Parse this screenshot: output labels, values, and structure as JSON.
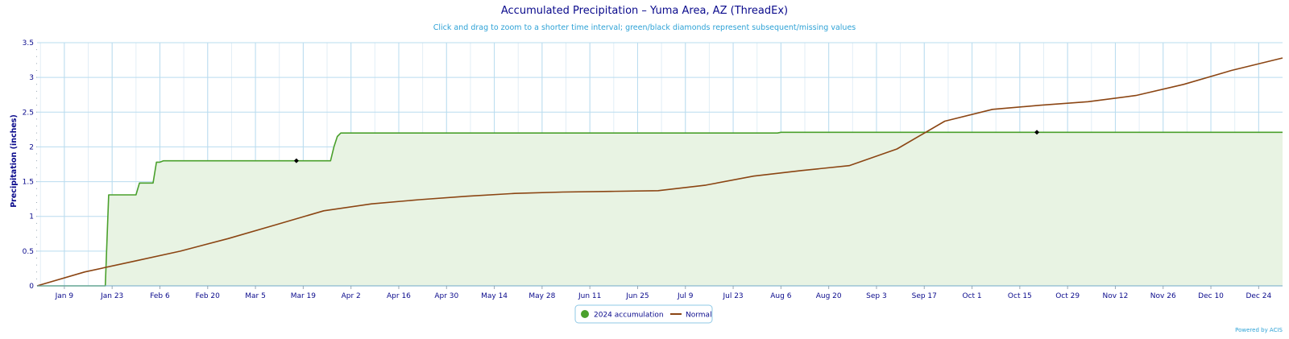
{
  "chart_data": {
    "type": "line",
    "title": "Accumulated Precipitation – Yuma Area, AZ (ThreadEx)",
    "subtitle": "Click and drag to zoom to a shorter time interval; green/black diamonds represent subsequent/missing values",
    "ylabel": "Precipitation (inches)",
    "xlabel": "",
    "ylim": [
      0,
      3.5
    ],
    "yticks": [
      "0",
      "0.5",
      "1",
      "1.5",
      "2",
      "2.5",
      "3",
      "3.5"
    ],
    "xticks": [
      "Jan 9",
      "Jan 23",
      "Feb 6",
      "Feb 20",
      "Mar 5",
      "Mar 19",
      "Apr 2",
      "Apr 16",
      "Apr 30",
      "May 14",
      "May 28",
      "Jun 11",
      "Jun 25",
      "Jul 9",
      "Jul 23",
      "Aug 6",
      "Aug 20",
      "Sep 3",
      "Sep 17",
      "Oct 1",
      "Oct 15",
      "Oct 29",
      "Nov 12",
      "Nov 26",
      "Dec 10",
      "Dec 24"
    ],
    "grid": true,
    "legend_position": "bottom-center",
    "series": [
      {
        "name": "2024 accumulation",
        "color": "#4aa02c",
        "fill": "#e8f3e3",
        "points": [
          [
            "2024-01-01",
            0.0
          ],
          [
            "2024-01-21",
            0.0
          ],
          [
            "2024-01-22",
            1.31
          ],
          [
            "2024-01-30",
            1.31
          ],
          [
            "2024-01-31",
            1.48
          ],
          [
            "2024-02-04",
            1.48
          ],
          [
            "2024-02-05",
            1.78
          ],
          [
            "2024-02-06",
            1.78
          ],
          [
            "2024-02-07",
            1.8
          ],
          [
            "2024-03-27",
            1.8
          ],
          [
            "2024-03-28",
            2.0
          ],
          [
            "2024-03-29",
            2.15
          ],
          [
            "2024-03-30",
            2.2
          ],
          [
            "2024-08-05",
            2.2
          ],
          [
            "2024-08-06",
            2.21
          ],
          [
            "2024-12-31",
            2.21
          ]
        ]
      },
      {
        "name": "Normal",
        "color": "#8b4513",
        "points": [
          [
            "2024-01-01",
            0.0
          ],
          [
            "2024-01-15",
            0.2
          ],
          [
            "2024-01-29",
            0.35
          ],
          [
            "2024-02-12",
            0.5
          ],
          [
            "2024-02-26",
            0.68
          ],
          [
            "2024-03-11",
            0.88
          ],
          [
            "2024-03-25",
            1.08
          ],
          [
            "2024-04-08",
            1.18
          ],
          [
            "2024-04-22",
            1.24
          ],
          [
            "2024-05-06",
            1.29
          ],
          [
            "2024-05-20",
            1.33
          ],
          [
            "2024-06-03",
            1.35
          ],
          [
            "2024-06-17",
            1.36
          ],
          [
            "2024-07-01",
            1.37
          ],
          [
            "2024-07-15",
            1.45
          ],
          [
            "2024-07-29",
            1.58
          ],
          [
            "2024-08-12",
            1.66
          ],
          [
            "2024-08-26",
            1.73
          ],
          [
            "2024-09-09",
            1.97
          ],
          [
            "2024-09-23",
            2.37
          ],
          [
            "2024-10-07",
            2.54
          ],
          [
            "2024-10-21",
            2.6
          ],
          [
            "2024-11-04",
            2.65
          ],
          [
            "2024-11-18",
            2.74
          ],
          [
            "2024-12-02",
            2.9
          ],
          [
            "2024-12-16",
            3.1
          ],
          [
            "2024-12-31",
            3.28
          ]
        ]
      }
    ],
    "markers": [
      {
        "date": "2024-03-17",
        "value": 1.8,
        "color": "#000000"
      },
      {
        "date": "2024-10-20",
        "value": 2.21,
        "color": "#000000"
      }
    ]
  },
  "legend": {
    "items": [
      {
        "label": "2024 accumulation",
        "color": "#4aa02c",
        "symbol": "circle"
      },
      {
        "label": "Normal",
        "color": "#8b4513",
        "symbol": "line"
      }
    ]
  },
  "credits": "Powered by ACIS"
}
